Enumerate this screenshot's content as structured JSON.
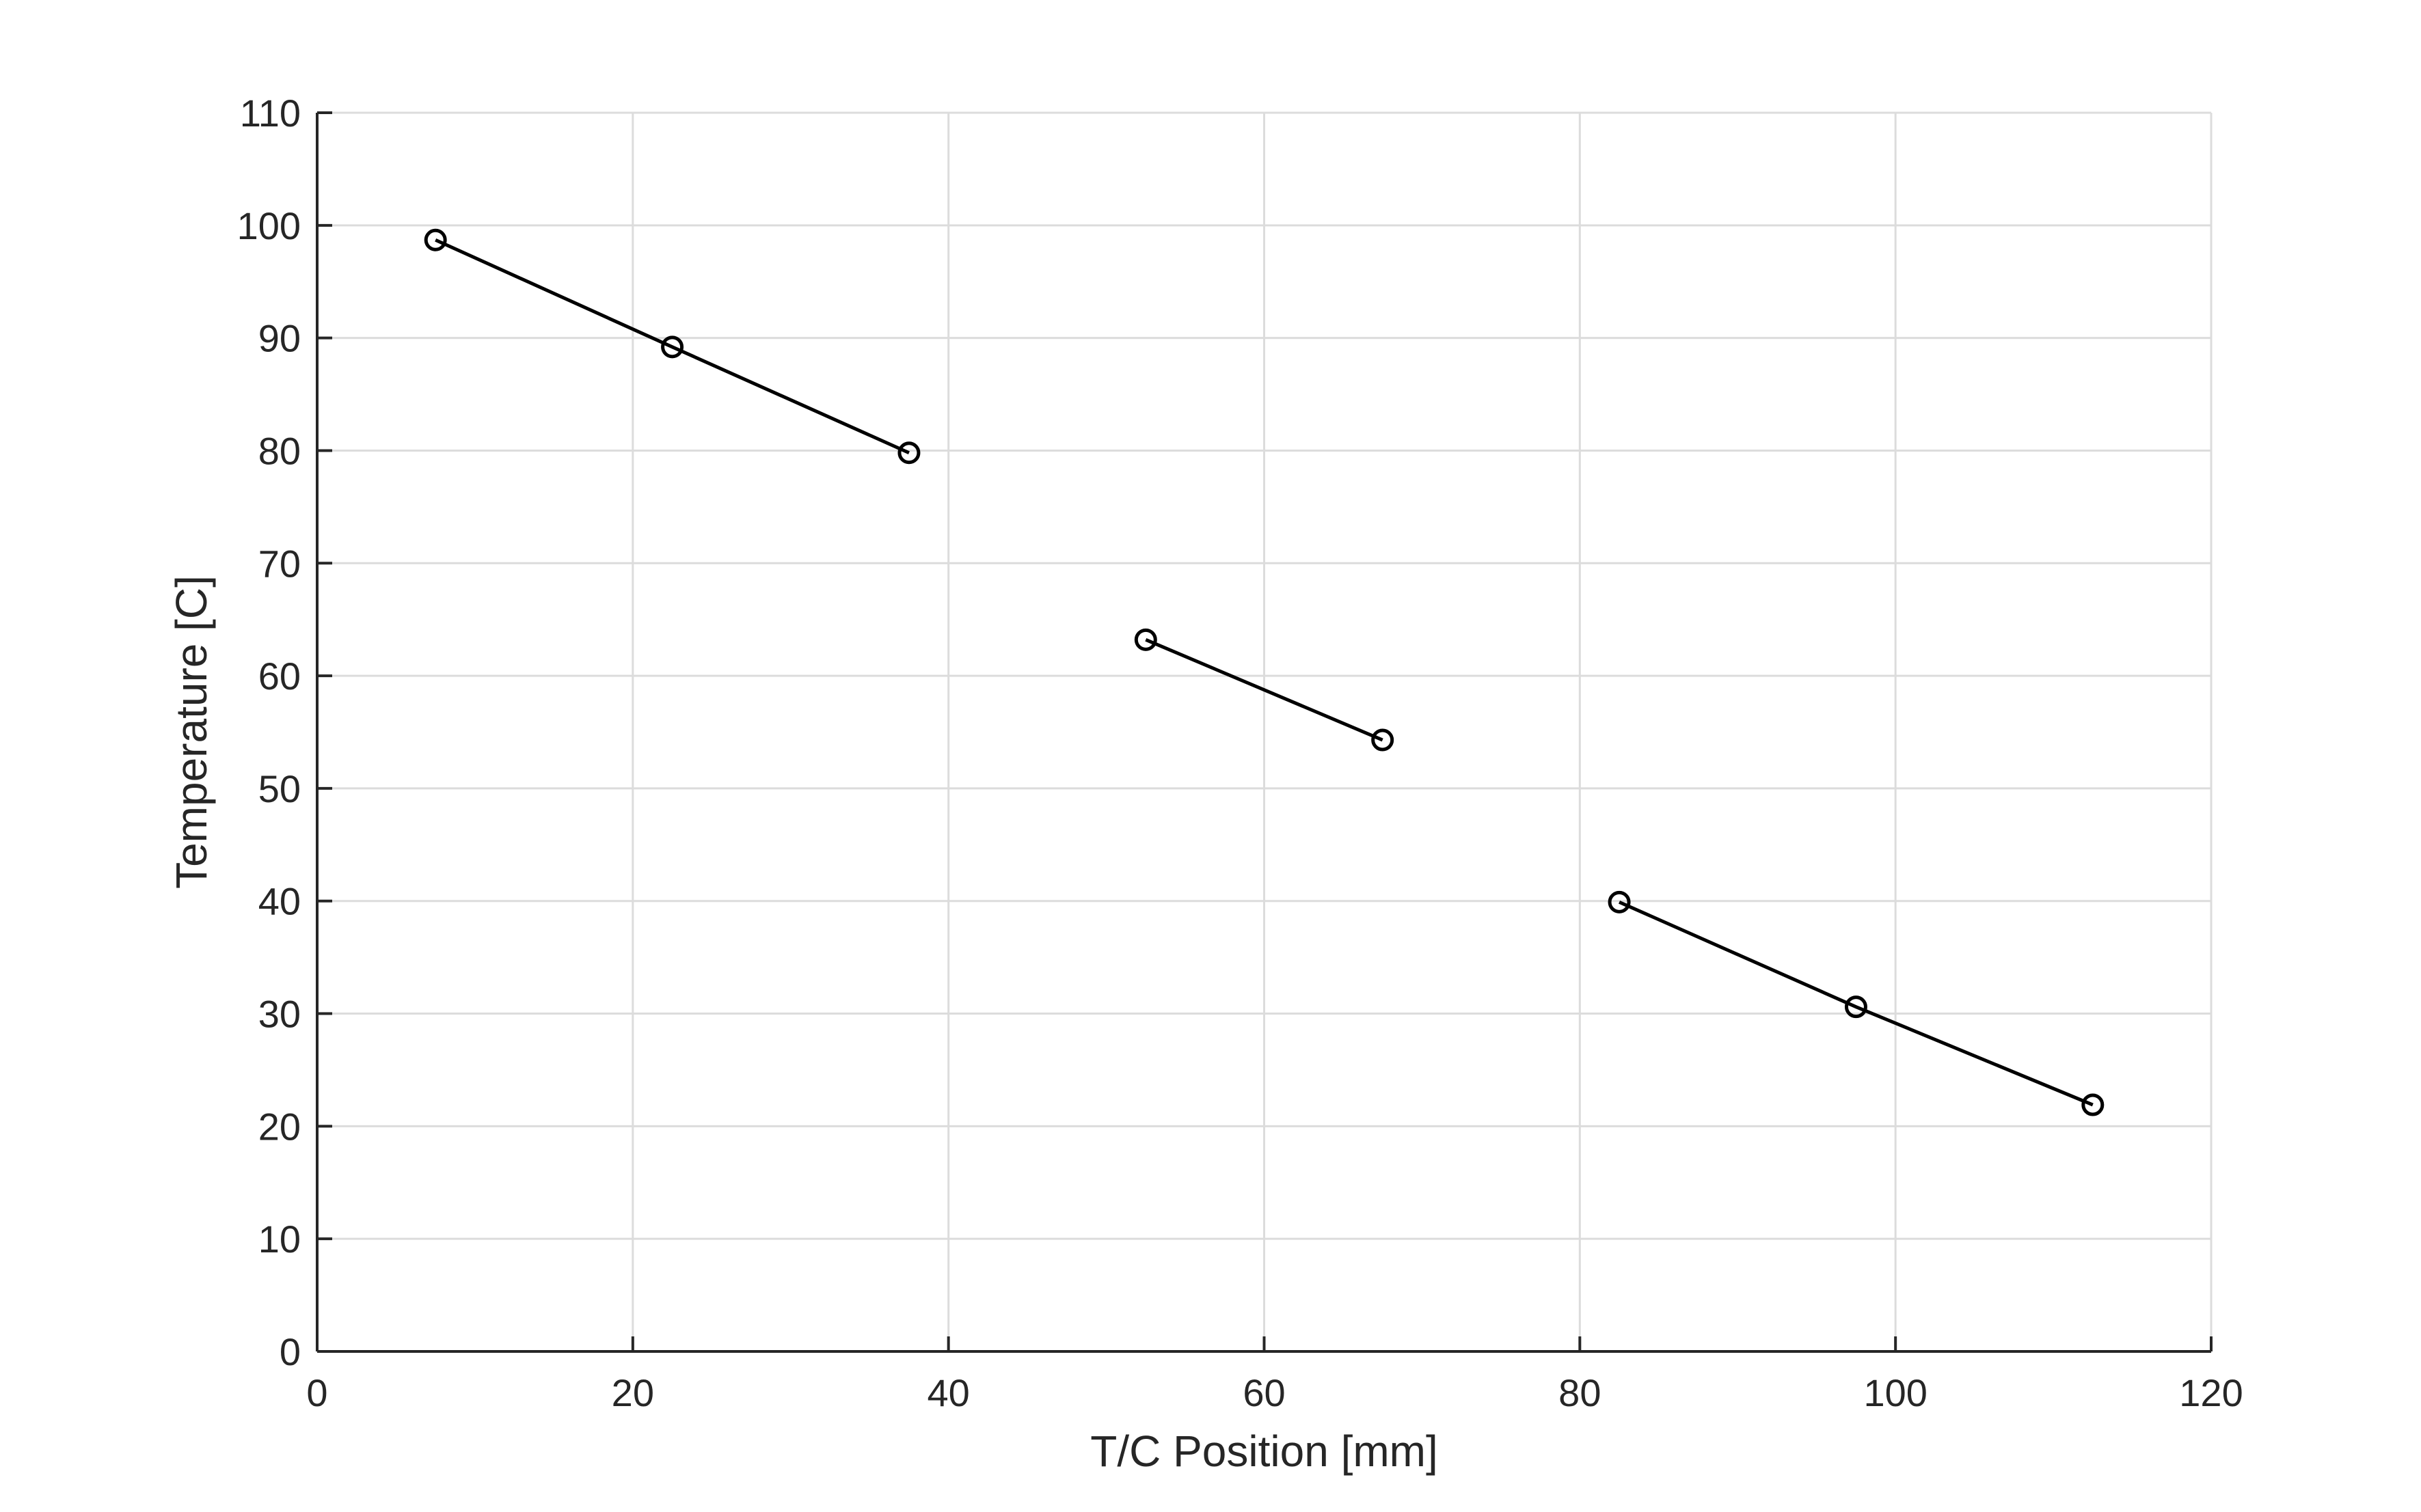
{
  "chart_data": {
    "type": "line",
    "title": "",
    "xlabel": "T/C Position [mm]",
    "ylabel": "Temperature [C]",
    "xlim": [
      0,
      120
    ],
    "ylim": [
      0,
      110
    ],
    "xticks": [
      0,
      20,
      40,
      60,
      80,
      100,
      120
    ],
    "yticks": [
      0,
      10,
      20,
      30,
      40,
      50,
      60,
      70,
      80,
      90,
      100,
      110
    ],
    "grid": true,
    "legend": "none",
    "marker": "open-circle",
    "colors": {
      "line": "#000000",
      "grid": "#dcdcdc",
      "axis": "#262626"
    },
    "series": [
      {
        "x": [
          7.5,
          22.5,
          37.5
        ],
        "y": [
          98.7,
          89.2,
          79.8
        ]
      },
      {
        "x": [
          52.5,
          67.5
        ],
        "y": [
          63.2,
          54.3
        ]
      },
      {
        "x": [
          82.5,
          97.5,
          112.5
        ],
        "y": [
          39.9,
          30.6,
          21.9
        ]
      }
    ]
  }
}
